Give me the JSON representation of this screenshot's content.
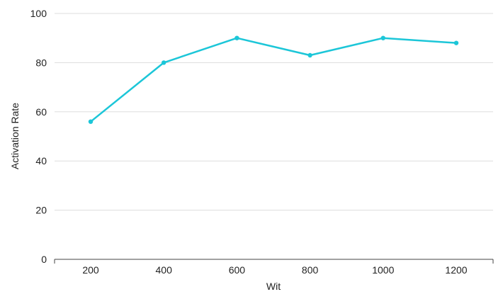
{
  "chart_data": {
    "type": "line",
    "title": "",
    "xlabel": "Wit",
    "ylabel": "Activation Rate",
    "x": [
      200,
      400,
      600,
      800,
      1000,
      1200
    ],
    "x_tick_labels": [
      "200",
      "400",
      "600",
      "800",
      "1000",
      "1200"
    ],
    "y_ticks": [
      0,
      20,
      40,
      60,
      80,
      100
    ],
    "y_tick_labels": [
      "0",
      "20",
      "40",
      "60",
      "80",
      "100"
    ],
    "ylim": [
      0,
      100
    ],
    "grid": true,
    "legend": "none",
    "series": [
      {
        "values": [
          56,
          80,
          90,
          83,
          90,
          88
        ],
        "color": "#1cc6d8"
      }
    ],
    "colors": {
      "grid": "#dddddd",
      "axis": "#444444",
      "line": "#1cc6d8"
    }
  }
}
